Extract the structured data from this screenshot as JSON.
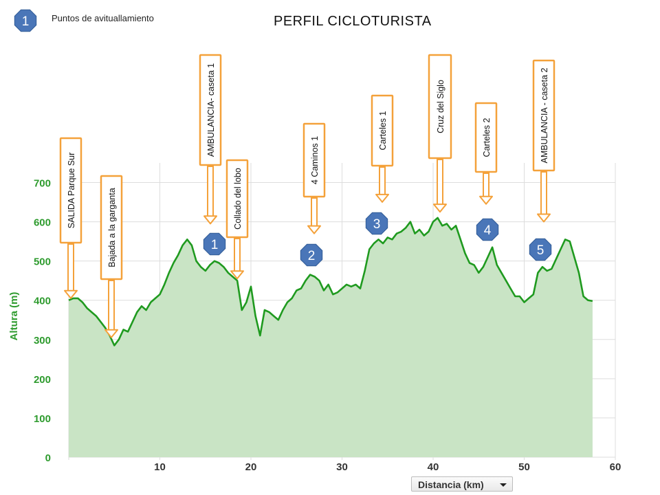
{
  "title": "PERFIL CICLOTURISTA",
  "legend": {
    "badge_number": "1",
    "label": "Puntos de avituallamiento"
  },
  "distance_selector": {
    "label": "Distancia (km)"
  },
  "colors": {
    "line": "#1f9a1f",
    "fill": "#c9e4c5",
    "axis_text": "#2e9b2e",
    "grid": "#dddddd",
    "callout_border": "#f4a13a",
    "badge": "#4a76b8",
    "badge_text": "#ffffff"
  },
  "chart_data": {
    "type": "area",
    "title": "PERFIL CICLOTURISTA",
    "xlabel": "Distancia (km)",
    "ylabel": "Altura (m)",
    "xlim": [
      0,
      60
    ],
    "ylim": [
      0,
      750
    ],
    "xticks": [
      10,
      20,
      30,
      40,
      50,
      60
    ],
    "yticks": [
      0,
      100,
      200,
      300,
      400,
      500,
      600,
      700
    ],
    "grid": true,
    "x": [
      0,
      0.5,
      1,
      1.5,
      2,
      2.5,
      3,
      3.5,
      4,
      4.5,
      5,
      5.5,
      6,
      6.5,
      7,
      7.5,
      8,
      8.5,
      9,
      9.5,
      10,
      10.5,
      11,
      11.5,
      12,
      12.5,
      13,
      13.5,
      14,
      14.5,
      15,
      15.5,
      16,
      16.5,
      17,
      17.5,
      18,
      18.5,
      19,
      19.5,
      20,
      20.5,
      21,
      21.5,
      22,
      22.5,
      23,
      23.5,
      24,
      24.5,
      25,
      25.5,
      26,
      26.5,
      27,
      27.5,
      28,
      28.5,
      29,
      29.5,
      30,
      30.5,
      31,
      31.5,
      32,
      32.5,
      33,
      33.5,
      34,
      34.5,
      35,
      35.5,
      36,
      36.5,
      37,
      37.5,
      38,
      38.5,
      39,
      39.5,
      40,
      40.5,
      41,
      41.5,
      42,
      42.5,
      43,
      43.5,
      44,
      44.5,
      45,
      45.5,
      46,
      46.5,
      47,
      47.5,
      48,
      48.5,
      49,
      49.5,
      50,
      50.5,
      51,
      51.5,
      52,
      52.5,
      53,
      53.5,
      54,
      54.5,
      55,
      55.5,
      56,
      56.5,
      57,
      57.5
    ],
    "y": [
      400,
      405,
      405,
      395,
      380,
      370,
      360,
      345,
      330,
      310,
      285,
      300,
      325,
      320,
      345,
      370,
      385,
      375,
      395,
      405,
      415,
      440,
      470,
      495,
      515,
      540,
      555,
      540,
      500,
      485,
      475,
      490,
      500,
      495,
      485,
      470,
      460,
      450,
      375,
      395,
      435,
      360,
      310,
      375,
      370,
      360,
      350,
      375,
      395,
      405,
      425,
      430,
      450,
      465,
      460,
      450,
      425,
      440,
      415,
      420,
      430,
      440,
      435,
      440,
      430,
      475,
      530,
      545,
      555,
      545,
      560,
      555,
      570,
      575,
      585,
      600,
      570,
      580,
      565,
      575,
      600,
      610,
      590,
      595,
      580,
      590,
      555,
      520,
      495,
      490,
      470,
      485,
      510,
      535,
      490,
      470,
      450,
      430,
      410,
      410,
      395,
      405,
      415,
      470,
      485,
      475,
      480,
      505,
      530,
      555,
      550,
      510,
      470,
      410,
      400,
      398
    ],
    "feed_points": [
      {
        "label": "1",
        "x": 16,
        "y": 535
      },
      {
        "label": "2",
        "x": 26.5,
        "y": 495
      },
      {
        "label": "3",
        "x": 34.5,
        "y": 605
      },
      {
        "label": "4",
        "x": 46,
        "y": 585
      },
      {
        "label": "5",
        "x": 52,
        "y": 520
      }
    ],
    "annotations": [
      {
        "text": "SALIDA Parque Sur",
        "x": 0,
        "y": 400
      },
      {
        "text": "Bajada a la garganta",
        "x": 4.8,
        "y": 300
      },
      {
        "text": "AMBULANCIA- caseta 1",
        "x": 15.6,
        "y": 590
      },
      {
        "text": "Collado del lobo",
        "x": 18.5,
        "y": 450
      },
      {
        "text": "4 Caminos 1",
        "x": 27,
        "y": 565
      },
      {
        "text": "Carteles 1",
        "x": 34.5,
        "y": 645
      },
      {
        "text": "Cruz del Siglo",
        "x": 40.8,
        "y": 620
      },
      {
        "text": "Carteles 2",
        "x": 45.8,
        "y": 640
      },
      {
        "text": "AMBULANCIA - caseta 2",
        "x": 52.2,
        "y": 595
      }
    ]
  }
}
